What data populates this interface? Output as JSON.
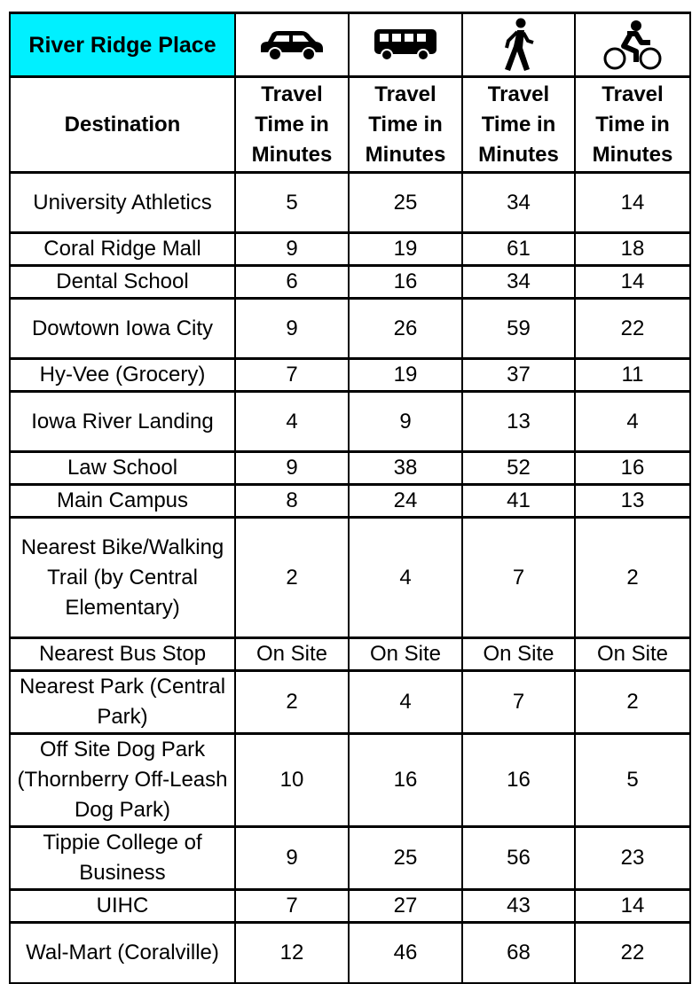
{
  "title": "River Ridge Place",
  "modes": [
    {
      "icon": "car-icon",
      "label": "Travel Time in Minutes"
    },
    {
      "icon": "bus-icon",
      "label": "Travel Time in Minutes"
    },
    {
      "icon": "walking-icon",
      "label": "Travel Time in Minutes"
    },
    {
      "icon": "bicycle-icon",
      "label": "Travel Time in Minutes"
    }
  ],
  "destination_header": "Destination",
  "rows": [
    {
      "destination": "University Athletics",
      "values": [
        "5",
        "25",
        "34",
        "14"
      ]
    },
    {
      "destination": "Coral Ridge Mall",
      "values": [
        "9",
        "19",
        "61",
        "18"
      ]
    },
    {
      "destination": "Dental School",
      "values": [
        "6",
        "16",
        "34",
        "14"
      ]
    },
    {
      "destination": "Dowtown Iowa City",
      "values": [
        "9",
        "26",
        "59",
        "22"
      ]
    },
    {
      "destination": "Hy-Vee (Grocery)",
      "values": [
        "7",
        "19",
        "37",
        "11"
      ]
    },
    {
      "destination": "Iowa River Landing",
      "values": [
        "4",
        "9",
        "13",
        "4"
      ]
    },
    {
      "destination": "Law School",
      "values": [
        "9",
        "38",
        "52",
        "16"
      ]
    },
    {
      "destination": "Main Campus",
      "values": [
        "8",
        "24",
        "41",
        "13"
      ]
    },
    {
      "destination": "Nearest Bike/Walking Trail (by Central Elementary)",
      "values": [
        "2",
        "4",
        "7",
        "2"
      ]
    },
    {
      "destination": "Nearest Bus Stop",
      "values": [
        "On Site",
        "On Site",
        "On Site",
        "On Site"
      ]
    },
    {
      "destination": "Nearest Park (Central Park)",
      "values": [
        "2",
        "4",
        "7",
        "2"
      ]
    },
    {
      "destination": "Off Site Dog Park (Thornberry Off-Leash Dog Park)",
      "values": [
        "10",
        "16",
        "16",
        "5"
      ]
    },
    {
      "destination": "Tippie College of Business",
      "values": [
        "9",
        "25",
        "56",
        "23"
      ]
    },
    {
      "destination": "UIHC",
      "values": [
        "7",
        "27",
        "43",
        "14"
      ]
    },
    {
      "destination": "Wal-Mart (Coralville)",
      "values": [
        "12",
        "46",
        "68",
        "22"
      ]
    }
  ],
  "colors": {
    "title_bg": "#00f0ff"
  }
}
